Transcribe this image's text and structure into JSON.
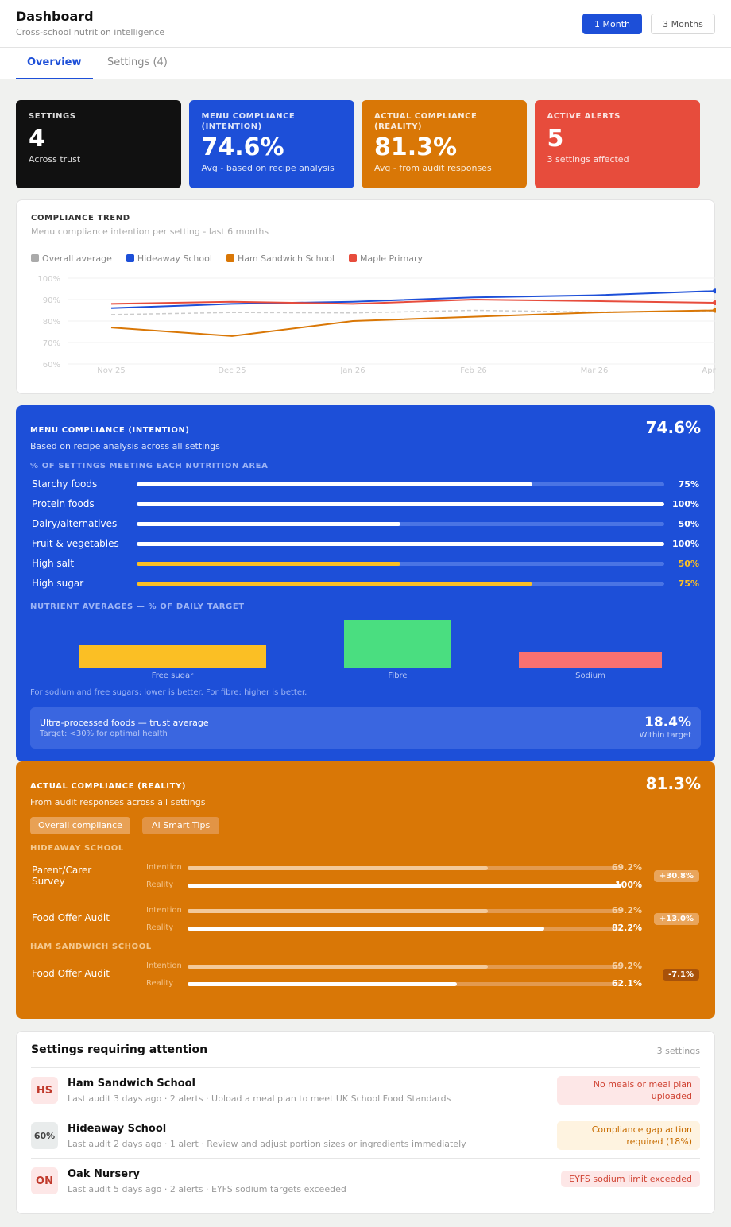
{
  "header": {
    "title": "Dashboard",
    "subtitle": "Cross-school nutrition intelligence",
    "range_buttons": [
      "1 Month",
      "3 Months"
    ],
    "active_range": "1 Month"
  },
  "tabs": [
    {
      "label": "Overview",
      "active": true
    },
    {
      "label": "Settings (4)",
      "active": false
    }
  ],
  "cards": [
    {
      "label": "SETTINGS",
      "value": "4",
      "caption": "Across trust",
      "color": "#111111"
    },
    {
      "label": "MENU COMPLIANCE (INTENTION)",
      "value": "74.6%",
      "caption": "Avg - based on recipe analysis",
      "color": "#1d4fd8"
    },
    {
      "label": "ACTUAL COMPLIANCE (REALITY)",
      "value": "81.3%",
      "caption": "Avg - from audit responses",
      "color": "#d97706"
    },
    {
      "label": "ACTIVE ALERTS",
      "value": "5",
      "caption": "3 settings affected",
      "color": "#e74c3c"
    }
  ],
  "trend": {
    "title": "COMPLIANCE TREND",
    "subtitle": "Menu compliance intention per setting - last 6 months"
  },
  "chart_data": {
    "type": "line",
    "x": [
      "Nov 25",
      "Dec 25",
      "Jan 26",
      "Feb 26",
      "Mar 26",
      "Apr 26"
    ],
    "yticks": [
      "100%",
      "90%",
      "80%",
      "70%",
      "60%"
    ],
    "ylim": [
      60,
      100
    ],
    "grid": true,
    "legend": "top-left",
    "series": [
      {
        "name": "Overall average",
        "color": "#aaaaaa",
        "dashed": true,
        "values": [
          83,
          84,
          83.8,
          85,
          84.2,
          84.5
        ]
      },
      {
        "name": "Hideaway School",
        "color": "#1d4fd8",
        "values": [
          86,
          88,
          89,
          91,
          92,
          94
        ]
      },
      {
        "name": "Ham Sandwich School",
        "color": "#d97706",
        "values": [
          77,
          73,
          80,
          82,
          84,
          85
        ]
      },
      {
        "name": "Maple Primary",
        "color": "#e74c3c",
        "values": [
          88,
          89,
          88,
          90,
          89.3,
          88.5
        ]
      }
    ]
  },
  "menu": {
    "title": "MENU COMPLIANCE (INTENTION)",
    "value": "74.6%",
    "subtitle": "Based on recipe analysis across all settings",
    "areas_title": "% OF SETTINGS MEETING EACH NUTRITION AREA",
    "areas": [
      {
        "label": "Starchy foods",
        "value": "75%",
        "pct": 75,
        "warn": false
      },
      {
        "label": "Protein foods",
        "value": "100%",
        "pct": 100,
        "warn": false
      },
      {
        "label": "Dairy/alternatives",
        "value": "50%",
        "pct": 50,
        "warn": false
      },
      {
        "label": "Fruit & vegetables",
        "value": "100%",
        "pct": 100,
        "warn": false
      },
      {
        "label": "High salt",
        "value": "50%",
        "pct": 50,
        "warn": true
      },
      {
        "label": "High sugar",
        "value": "75%",
        "pct": 75,
        "warn": true
      }
    ],
    "nutrients_title": "NUTRIENT AVERAGES — % OF DAILY TARGET",
    "nutrients": [
      {
        "label": "Free sugar",
        "level": 47,
        "color": "#fbbf24"
      },
      {
        "label": "Fibre",
        "level": 100,
        "color": "#4ade80"
      },
      {
        "label": "Sodium",
        "level": 33,
        "color": "#f87171"
      }
    ],
    "note": "For sodium and free sugars: lower is better. For fibre: higher is better.",
    "upf": {
      "title": "Ultra-processed foods — trust average",
      "target": "Target: <30% for optimal health",
      "value": "18.4%",
      "status": "Within target"
    }
  },
  "actual": {
    "title": "ACTUAL COMPLIANCE (REALITY)",
    "value": "81.3%",
    "subtitle": "From audit responses across all settings",
    "buttons": [
      "Overall compliance",
      "AI Smart Tips"
    ],
    "intention_label": "Intention",
    "reality_label": "Reality",
    "groups": [
      {
        "name": "HIDEAWAY SCHOOL",
        "rows": [
          {
            "label": "Parent/Carer Survey",
            "intention": "69.2%",
            "intention_pct": 69.2,
            "reality": "100%",
            "reality_pct": 100,
            "delta": "+30.8%",
            "negative": false
          },
          {
            "label": "Food Offer Audit",
            "intention": "69.2%",
            "intention_pct": 69.2,
            "reality": "82.2%",
            "reality_pct": 82.2,
            "delta": "+13.0%",
            "negative": false
          }
        ]
      },
      {
        "name": "HAM SANDWICH SCHOOL",
        "rows": [
          {
            "label": "Food Offer Audit",
            "intention": "69.2%",
            "intention_pct": 69.2,
            "reality": "62.1%",
            "reality_pct": 62.1,
            "delta": "-7.1%",
            "negative": true
          }
        ]
      }
    ]
  },
  "attention": {
    "title": "Settings requiring attention",
    "count": "3 settings",
    "items": [
      {
        "initials": "HS",
        "name": "Ham Sandwich School",
        "detail": "Last audit 3 days ago · 2 alerts · Upload a meal plan to meet UK School Food Standards",
        "badge": "No meals or meal plan uploaded",
        "tone": "red"
      },
      {
        "initials": "60%",
        "name": "Hideaway School",
        "detail": "Last audit 2 days ago · 1 alert · Review and adjust portion sizes or ingredients immediately",
        "badge": "Compliance gap action required (18%)",
        "tone": "amber"
      },
      {
        "initials": "ON",
        "name": "Oak Nursery",
        "detail": "Last audit 5 days ago · 2 alerts · EYFS sodium targets exceeded",
        "badge": "EYFS sodium limit exceeded",
        "tone": "red"
      }
    ]
  }
}
